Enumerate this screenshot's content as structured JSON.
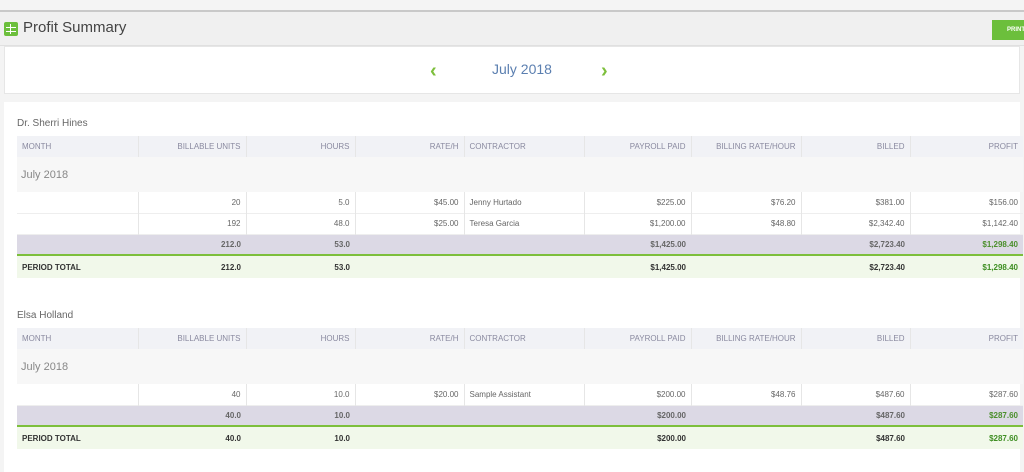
{
  "app": {
    "title": "Profit Summary",
    "print_label": "PRINT"
  },
  "nav": {
    "period": "July 2018",
    "prev_icon": "chevron-left-icon",
    "next_icon": "chevron-right-icon"
  },
  "colors": {
    "accent": "#6cbf3c",
    "subtotal_bg": "#dcd9e5",
    "total_bg": "#f1f8ea",
    "profit_green": "#3f8f23"
  },
  "columns": [
    "MONTH",
    "BILLABLE UNITS",
    "HOURS",
    "RATE/H",
    "CONTRACTOR",
    "PAYROLL PAID",
    "BILLING RATE/HOUR",
    "BILLED",
    "PROFIT"
  ],
  "sections": [
    {
      "name": "Dr. Sherri Hines",
      "month": "July 2018",
      "rows": [
        [
          "",
          "20",
          "5.0",
          "$45.00",
          "Jenny Hurtado",
          "$225.00",
          "$76.20",
          "$381.00",
          "$156.00"
        ],
        [
          "",
          "192",
          "48.0",
          "$25.00",
          "Teresa Garcia",
          "$1,200.00",
          "$48.80",
          "$2,342.40",
          "$1,142.40"
        ]
      ],
      "subtotal": {
        "units": "212.0",
        "hours": "53.0",
        "payroll": "$1,425.00",
        "billed": "$2,723.40",
        "profit": "$1,298.40"
      },
      "total": {
        "label": "PERIOD TOTAL",
        "units": "212.0",
        "hours": "53.0",
        "payroll": "$1,425.00",
        "billed": "$2,723.40",
        "profit": "$1,298.40"
      }
    },
    {
      "name": "Elsa Holland",
      "month": "July 2018",
      "rows": [
        [
          "",
          "40",
          "10.0",
          "$20.00",
          "Sample Assistant",
          "$200.00",
          "$48.76",
          "$487.60",
          "$287.60"
        ]
      ],
      "subtotal": {
        "units": "40.0",
        "hours": "10.0",
        "payroll": "$200.00",
        "billed": "$487.60",
        "profit": "$287.60"
      },
      "total": {
        "label": "PERIOD TOTAL",
        "units": "40.0",
        "hours": "10.0",
        "payroll": "$200.00",
        "billed": "$487.60",
        "profit": "$287.60"
      }
    }
  ]
}
